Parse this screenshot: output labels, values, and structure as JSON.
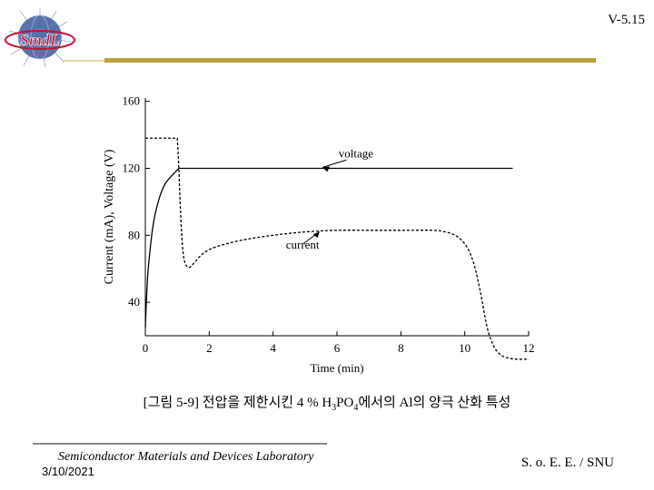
{
  "header": {
    "logo_text": "SmdL",
    "slide_number": "V-5.15"
  },
  "colors": {
    "rule_dark": "#b8a13a",
    "rule_light": "#e6d7a0",
    "logo_red": "#c8102e",
    "logo_blue": "#2a4ea0"
  },
  "chart_data": {
    "type": "line",
    "title": "",
    "xlabel": "Time (min)",
    "ylabel": "Current (mA), Voltage (V)",
    "xlim": [
      0,
      12
    ],
    "ylim": [
      20,
      162
    ],
    "xticks": [
      0,
      2,
      4,
      6,
      8,
      10,
      12
    ],
    "yticks": [
      40,
      80,
      120,
      160
    ],
    "grid": false,
    "series": [
      {
        "name": "voltage",
        "style": "solid",
        "x": [
          0,
          0.05,
          0.1,
          0.2,
          0.3,
          0.45,
          0.6,
          0.75,
          0.9,
          1.05,
          11.5
        ],
        "y": [
          25,
          48,
          62,
          80,
          92,
          103,
          110,
          114,
          117,
          120,
          120
        ]
      },
      {
        "name": "current",
        "style": "dashed",
        "x": [
          0,
          1.0,
          1.05,
          1.1,
          1.18,
          1.28,
          1.4,
          1.55,
          1.8,
          2.2,
          3.0,
          4.0,
          5.0,
          6.0,
          7.0,
          8.0,
          9.0,
          9.4,
          9.7,
          9.9,
          10.1,
          10.3,
          10.5,
          10.7,
          10.9,
          11.1,
          11.3,
          11.6,
          12.0
        ],
        "y": [
          138,
          138,
          120,
          95,
          70,
          62,
          61,
          64,
          69,
          73,
          77,
          80,
          82,
          83,
          83,
          83,
          83,
          82,
          80,
          77,
          72,
          62,
          45,
          25,
          14,
          9,
          7,
          6,
          6
        ]
      }
    ],
    "annotations": [
      "voltage",
      "current"
    ]
  },
  "caption": {
    "prefix": "[그림 5-9]  전압을 제한시킨 4 % H",
    "sub1": "3",
    "mid": "PO",
    "sub2": "4",
    "suffix": "에서의 Al의 양극 산화 특성"
  },
  "footer": {
    "lab": "Semiconductor Materials and Devices Laboratory",
    "date": "3/10/2021",
    "org": "S. o. E. E. / SNU"
  }
}
